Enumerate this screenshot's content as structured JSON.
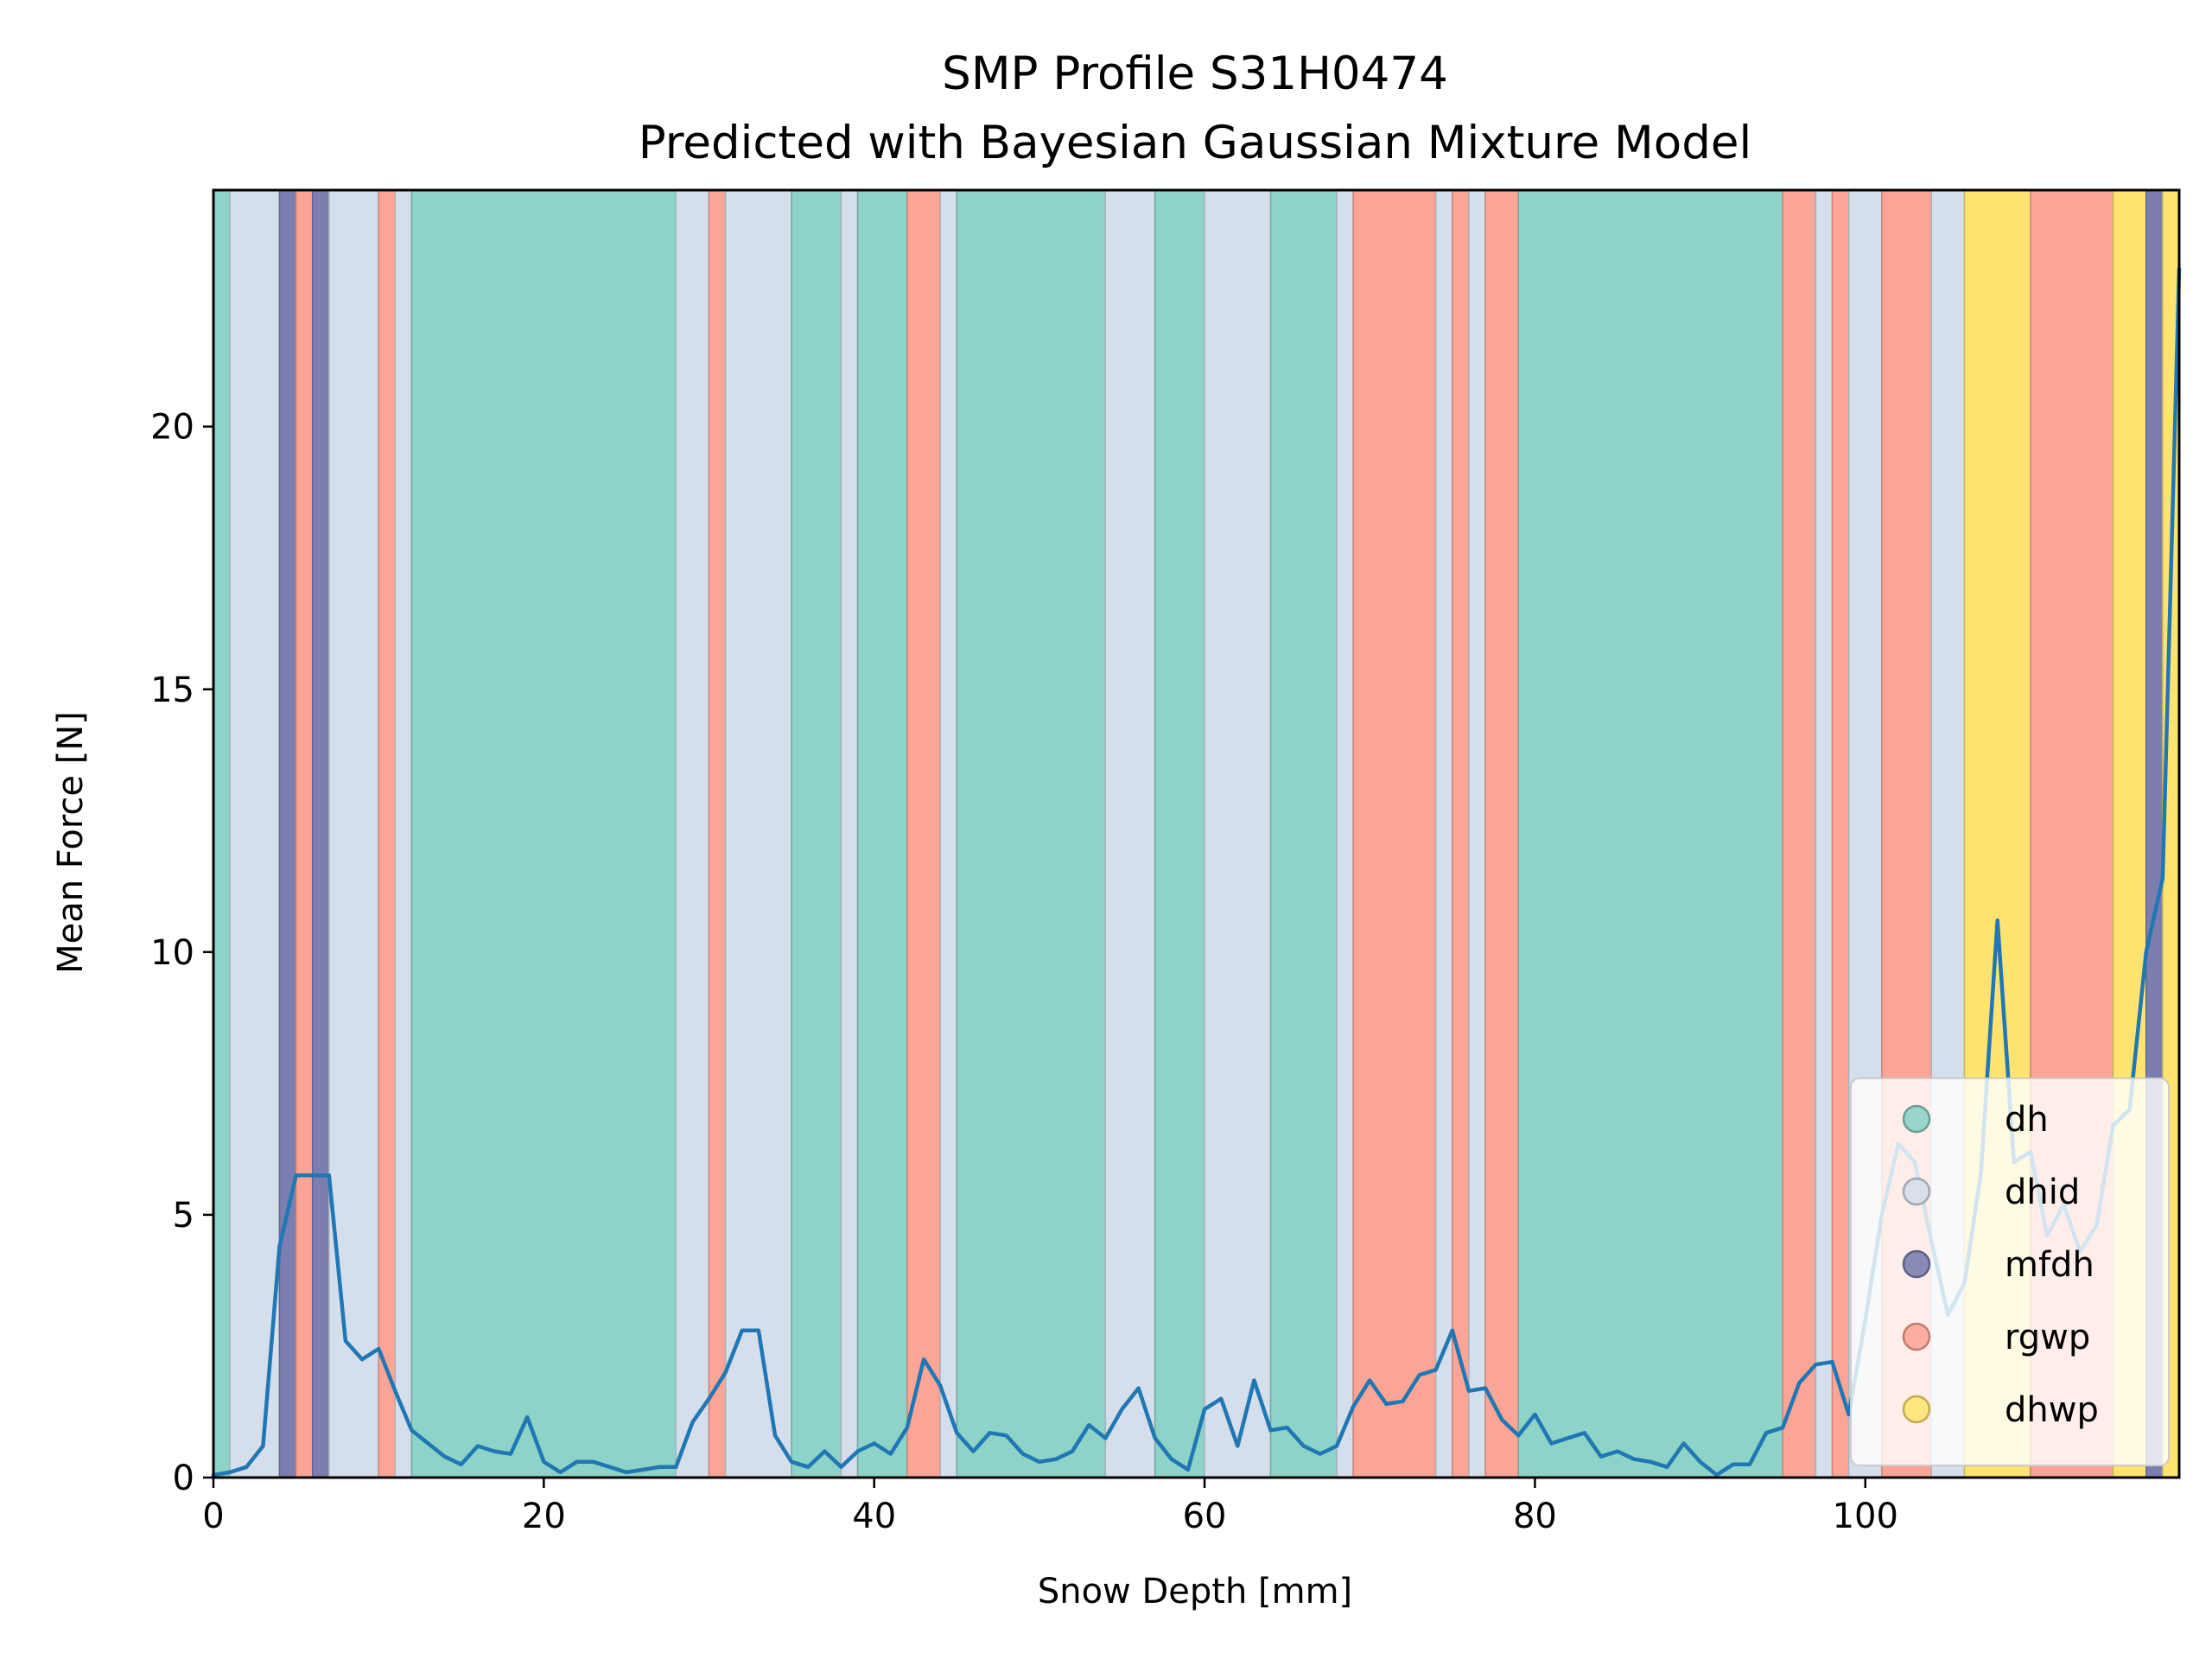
{
  "chart_data": {
    "type": "line",
    "title": "SMP Profile S31H0474",
    "subtitle": "Predicted with Bayesian Gaussian Mixture Model",
    "xlabel": "Snow Depth [mm]",
    "ylabel": "Mean Force [N]",
    "xlim": [
      0,
      119
    ],
    "ylim": [
      0,
      24.5
    ],
    "xticks": [
      "0",
      "20",
      "40",
      "60",
      "80",
      "100"
    ],
    "yticks": [
      "0",
      "5",
      "10",
      "15",
      "20"
    ],
    "grid": false,
    "legend_position": "lower-right",
    "colors": {
      "line": "#1f77b4",
      "dh": "#8dd3c7",
      "dhid": "#d5deeb",
      "mfdh": "#7c7eb0",
      "rgwp": "#fca596",
      "dhwp": "#ffe371"
    },
    "legend": [
      {
        "label": "dh",
        "key": "dh"
      },
      {
        "label": "dhid",
        "key": "dhid"
      },
      {
        "label": "mfdh",
        "key": "mfdh"
      },
      {
        "label": "rgwp",
        "key": "rgwp"
      },
      {
        "label": "dhwp",
        "key": "dhwp"
      }
    ],
    "segments": [
      {
        "from": 0,
        "to": 1,
        "cls": "dh"
      },
      {
        "from": 1,
        "to": 4,
        "cls": "dhid"
      },
      {
        "from": 4,
        "to": 5,
        "cls": "mfdh"
      },
      {
        "from": 5,
        "to": 6,
        "cls": "rgwp"
      },
      {
        "from": 6,
        "to": 7,
        "cls": "mfdh"
      },
      {
        "from": 7,
        "to": 10,
        "cls": "dhid"
      },
      {
        "from": 10,
        "to": 11,
        "cls": "rgwp"
      },
      {
        "from": 11,
        "to": 12,
        "cls": "dhid"
      },
      {
        "from": 12,
        "to": 28,
        "cls": "dh"
      },
      {
        "from": 28,
        "to": 30,
        "cls": "dhid"
      },
      {
        "from": 30,
        "to": 31,
        "cls": "rgwp"
      },
      {
        "from": 31,
        "to": 35,
        "cls": "dhid"
      },
      {
        "from": 35,
        "to": 38,
        "cls": "dh"
      },
      {
        "from": 38,
        "to": 39,
        "cls": "dhid"
      },
      {
        "from": 39,
        "to": 42,
        "cls": "dh"
      },
      {
        "from": 42,
        "to": 44,
        "cls": "rgwp"
      },
      {
        "from": 44,
        "to": 45,
        "cls": "dhid"
      },
      {
        "from": 45,
        "to": 54,
        "cls": "dh"
      },
      {
        "from": 54,
        "to": 57,
        "cls": "dhid"
      },
      {
        "from": 57,
        "to": 60,
        "cls": "dh"
      },
      {
        "from": 60,
        "to": 64,
        "cls": "dhid"
      },
      {
        "from": 64,
        "to": 68,
        "cls": "dh"
      },
      {
        "from": 68,
        "to": 69,
        "cls": "dhid"
      },
      {
        "from": 69,
        "to": 74,
        "cls": "rgwp"
      },
      {
        "from": 74,
        "to": 75,
        "cls": "dhid"
      },
      {
        "from": 75,
        "to": 76,
        "cls": "rgwp"
      },
      {
        "from": 76,
        "to": 77,
        "cls": "dhid"
      },
      {
        "from": 77,
        "to": 79,
        "cls": "rgwp"
      },
      {
        "from": 79,
        "to": 95,
        "cls": "dh"
      },
      {
        "from": 95,
        "to": 97,
        "cls": "rgwp"
      },
      {
        "from": 97,
        "to": 98,
        "cls": "dhid"
      },
      {
        "from": 98,
        "to": 99,
        "cls": "rgwp"
      },
      {
        "from": 99,
        "to": 101,
        "cls": "dhid"
      },
      {
        "from": 101,
        "to": 104,
        "cls": "rgwp"
      },
      {
        "from": 104,
        "to": 106,
        "cls": "dhid"
      },
      {
        "from": 106,
        "to": 110,
        "cls": "dhwp"
      },
      {
        "from": 110,
        "to": 115,
        "cls": "rgwp"
      },
      {
        "from": 115,
        "to": 117,
        "cls": "dhwp"
      },
      {
        "from": 117,
        "to": 118,
        "cls": "mfdh"
      },
      {
        "from": 118,
        "to": 119,
        "cls": "dhwp"
      }
    ],
    "series": [
      {
        "x": [
          0,
          1,
          2,
          3,
          4,
          5,
          6,
          7,
          8,
          9,
          10,
          11,
          12,
          13,
          14,
          15,
          16,
          17,
          18,
          19,
          20,
          21,
          22,
          23,
          24,
          25,
          26,
          27,
          28,
          29,
          30,
          31,
          32,
          33,
          34,
          35,
          36,
          37,
          38,
          39,
          40,
          41,
          42,
          43,
          44,
          45,
          46,
          47,
          48,
          49,
          50,
          51,
          52,
          53,
          54,
          55,
          56,
          57,
          58,
          59,
          60,
          61,
          62,
          63,
          64,
          65,
          66,
          67,
          68,
          69,
          70,
          71,
          72,
          73,
          74,
          75,
          76,
          77,
          78,
          79,
          80,
          81,
          82,
          83,
          84,
          85,
          86,
          87,
          88,
          89,
          90,
          91,
          92,
          93,
          94,
          95,
          96,
          97,
          98,
          99,
          100,
          101,
          102,
          103,
          104,
          105,
          106,
          107,
          108,
          109,
          110,
          111,
          112,
          113,
          114,
          115,
          116,
          117,
          118,
          119
        ],
        "values": [
          0.05,
          0.1,
          0.2,
          0.6,
          4.4,
          5.75,
          5.75,
          5.75,
          2.6,
          2.25,
          2.45,
          1.65,
          0.9,
          0.65,
          0.4,
          0.25,
          0.6,
          0.5,
          0.45,
          1.15,
          0.3,
          0.1,
          0.3,
          0.3,
          0.2,
          0.1,
          0.15,
          0.2,
          0.2,
          1.05,
          1.5,
          2.0,
          2.8,
          2.8,
          0.8,
          0.3,
          0.2,
          0.5,
          0.2,
          0.5,
          0.65,
          0.45,
          0.95,
          2.25,
          1.75,
          0.85,
          0.5,
          0.85,
          0.8,
          0.45,
          0.3,
          0.35,
          0.5,
          1.0,
          0.75,
          1.3,
          1.7,
          0.75,
          0.35,
          0.15,
          1.3,
          1.5,
          0.6,
          1.85,
          0.9,
          0.95,
          0.6,
          0.45,
          0.6,
          1.35,
          1.85,
          1.4,
          1.45,
          1.95,
          2.05,
          2.8,
          1.65,
          1.7,
          1.1,
          0.8,
          1.2,
          0.65,
          0.75,
          0.85,
          0.4,
          0.5,
          0.35,
          0.3,
          0.2,
          0.65,
          0.3,
          0.05,
          0.25,
          0.25,
          0.85,
          0.95,
          1.8,
          2.15,
          2.2,
          1.2,
          3.0,
          5.0,
          6.35,
          6.0,
          4.5,
          3.1,
          3.7,
          5.8,
          10.6,
          6.0,
          6.2,
          4.6,
          5.2,
          4.3,
          4.8,
          6.7,
          7.0,
          10.0,
          11.4,
          23.0
        ]
      }
    ]
  }
}
